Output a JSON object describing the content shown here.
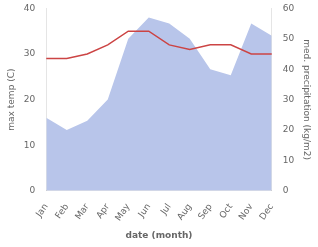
{
  "chart_data": {
    "type": "line",
    "xlabel": "date (month)",
    "ylabel": "max temp (C)",
    "y2label": "med. precipitation (kg/m2)",
    "categories": [
      "Jan",
      "Feb",
      "Mar",
      "Apr",
      "May",
      "Jun",
      "Jul",
      "Aug",
      "Sep",
      "Oct",
      "Nov",
      "Dec"
    ],
    "series": [
      {
        "type": "area",
        "axis": "y2",
        "color": "#b8c5ea",
        "values": [
          24,
          20,
          23,
          30,
          50,
          57,
          55,
          50,
          40,
          38,
          55,
          51
        ]
      },
      {
        "type": "line",
        "color": "#cc4444",
        "values": [
          29,
          29,
          30,
          32,
          35,
          35,
          32,
          31,
          32,
          32,
          30,
          30
        ]
      }
    ],
    "ylim": [
      0,
      40
    ],
    "yticks": [
      0,
      10,
      20,
      30,
      40
    ],
    "y2lim": [
      0,
      60
    ],
    "y2ticks": [
      0,
      10,
      20,
      30,
      40,
      50,
      60
    ],
    "grid": false
  }
}
